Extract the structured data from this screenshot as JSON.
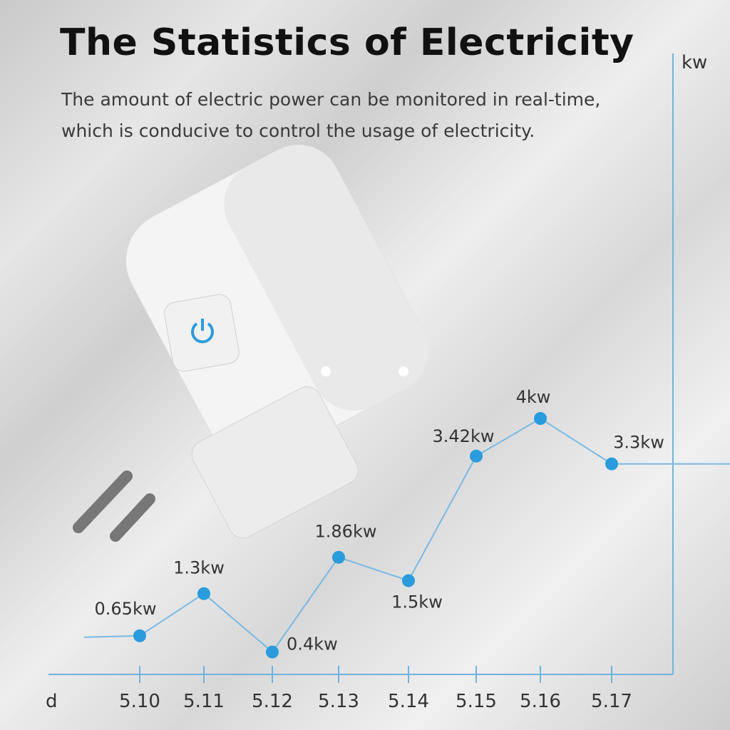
{
  "header": {
    "title": "The Statistics of Electricity",
    "subtitle_line1": "The amount of electric power can be monitored in real-time,",
    "subtitle_line2": "which is conducive to control the usage of electricity."
  },
  "colors": {
    "accent": "#2a9bdc",
    "axis": "#6fb3e0"
  },
  "icons": [
    "power-icon"
  ],
  "chart_data": {
    "type": "line",
    "title": "",
    "xlabel": "d",
    "ylabel": "kw",
    "grid": false,
    "categories": [
      "5.10",
      "5.11",
      "5.12",
      "5.13",
      "5.14",
      "5.15",
      "5.16",
      "5.17"
    ],
    "series": [
      {
        "values": [
          0.65,
          1.3,
          0.4,
          1.86,
          1.5,
          3.42,
          4,
          3.3
        ],
        "labels": [
          "0.65kw",
          "1.3kw",
          "0.4kw",
          "1.86kw",
          "1.5kw",
          "3.42kw",
          "4kw",
          "3.3kw"
        ]
      }
    ]
  }
}
